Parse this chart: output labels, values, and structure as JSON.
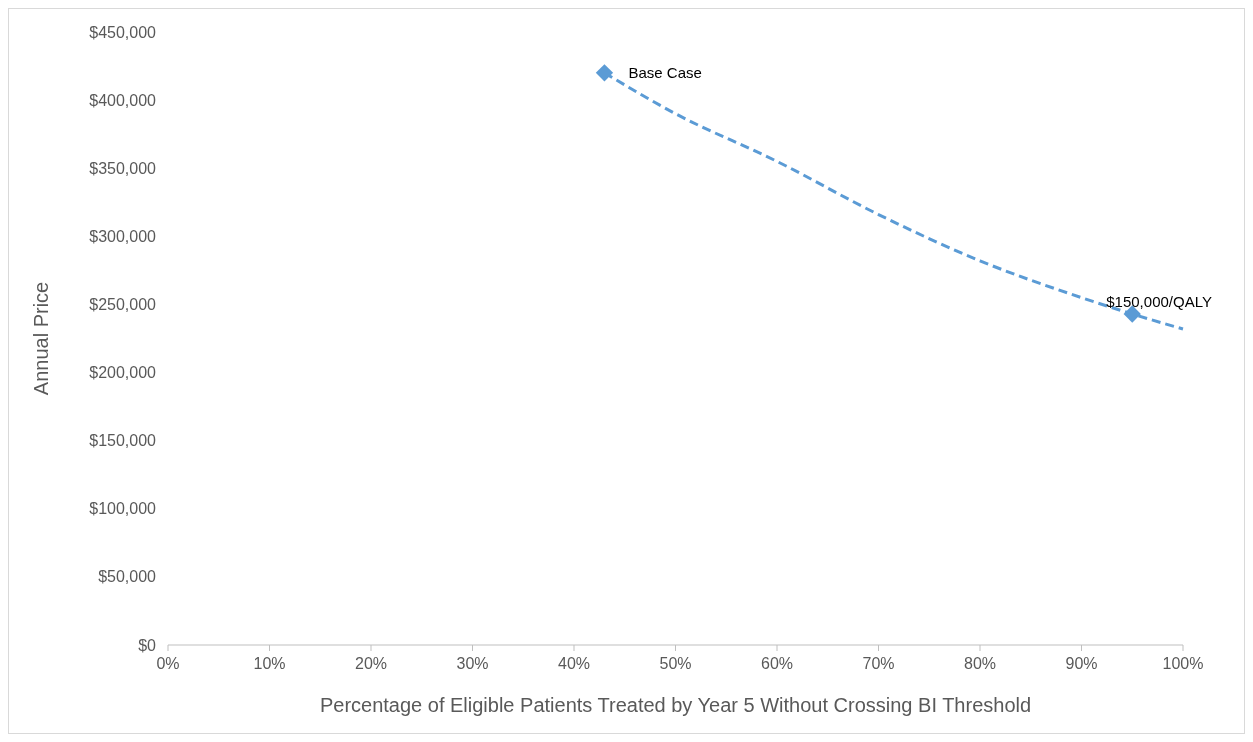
{
  "chart_data": {
    "type": "line",
    "xlabel": "Percentage of Eligible Patients Treated by Year 5 Without Crossing BI Threshold",
    "ylabel": "Annual Price",
    "xlim": [
      0,
      100
    ],
    "xticks": [
      {
        "value": 0,
        "label": "0%"
      },
      {
        "value": 10,
        "label": "10%"
      },
      {
        "value": 20,
        "label": "20%"
      },
      {
        "value": 30,
        "label": "30%"
      },
      {
        "value": 40,
        "label": "40%"
      },
      {
        "value": 50,
        "label": "50%"
      },
      {
        "value": 60,
        "label": "60%"
      },
      {
        "value": 70,
        "label": "70%"
      },
      {
        "value": 80,
        "label": "80%"
      },
      {
        "value": 90,
        "label": "90%"
      },
      {
        "value": 100,
        "label": "100%"
      }
    ],
    "ylim": [
      0,
      450000
    ],
    "yticks": [
      {
        "value": 0,
        "label": "$0"
      },
      {
        "value": 50000,
        "label": "$50,000"
      },
      {
        "value": 100000,
        "label": "$100,000"
      },
      {
        "value": 150000,
        "label": "$150,000"
      },
      {
        "value": 200000,
        "label": "$200,000"
      },
      {
        "value": 250000,
        "label": "$250,000"
      },
      {
        "value": 300000,
        "label": "$300,000"
      },
      {
        "value": 350000,
        "label": "$350,000"
      },
      {
        "value": 400000,
        "label": "$400,000"
      },
      {
        "value": 450000,
        "label": "$450,000"
      }
    ],
    "grid": false,
    "series": [
      {
        "color": "#5b9bd5",
        "line_style": "dashed",
        "marker": "none",
        "x": [
          43,
          50,
          60,
          70,
          80,
          90,
          95,
          100
        ],
        "values": [
          420000,
          390000,
          355000,
          316000,
          282000,
          255000,
          243000,
          232000
        ]
      },
      {
        "type": "scatter",
        "color": "#5b9bd5",
        "marker": "diamond",
        "x": [
          43,
          95
        ],
        "values": [
          420000,
          243000
        ]
      }
    ],
    "annotations": [
      {
        "text": "Base Case",
        "x": 43,
        "y": 420000
      },
      {
        "text": "$150,000/QALY",
        "x": 95,
        "y": 243000
      }
    ]
  }
}
